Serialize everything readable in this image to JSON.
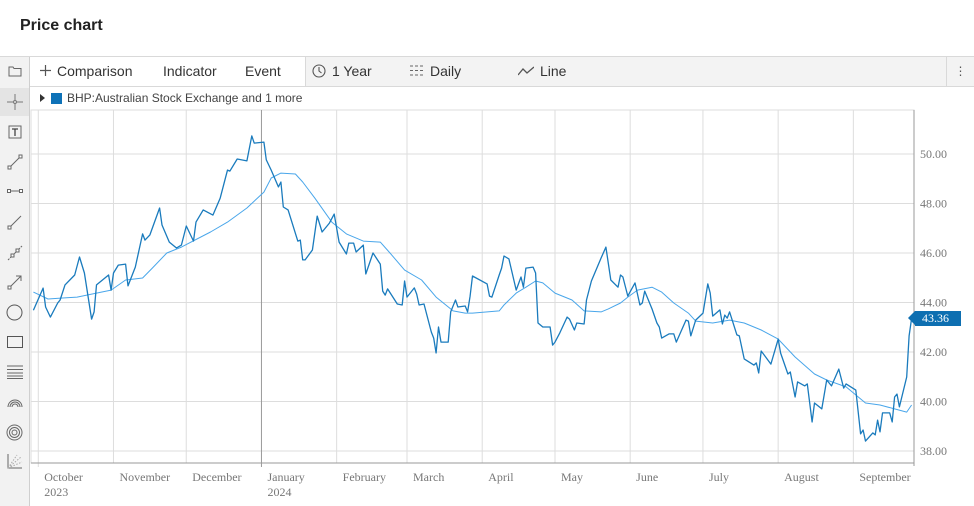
{
  "header": {
    "title": "Price chart"
  },
  "toolbar": {
    "comparison": "Comparison",
    "indicator": "Indicator",
    "event": "Event",
    "range": "1 Year",
    "interval": "Daily",
    "chart_type": "Line",
    "more": "⋮"
  },
  "sidebar": {
    "tools": [
      "folder-icon",
      "crosshair-icon",
      "text-box-icon",
      "trend-line-icon",
      "horizontal-segment-icon",
      "line-icon",
      "dashed-segment-icon",
      "arrow-icon",
      "circle-icon",
      "rectangle-icon",
      "parallel-lines-icon",
      "arcs-icon",
      "concentric-circles-icon",
      "fan-icon"
    ]
  },
  "legend": {
    "label": "BHP:Australian Stock Exchange and 1 more",
    "color": "#0e72b8"
  },
  "chart_data": {
    "type": "line",
    "title": "",
    "xlabel": "",
    "ylabel": "",
    "ylim": [
      37.6,
      52.2
    ],
    "xlim": [
      "2023-09-28",
      "2024-09-26"
    ],
    "y_ticks": [
      "38.00",
      "40.00",
      "42.00",
      "44.00",
      "46.00",
      "48.00",
      "50.00"
    ],
    "x_ticks": [
      {
        "label": "October",
        "sub": "2023",
        "date": "2023-10-01"
      },
      {
        "label": "November",
        "sub": "",
        "date": "2023-11-01"
      },
      {
        "label": "December",
        "sub": "",
        "date": "2023-12-01"
      },
      {
        "label": "January",
        "sub": "2024",
        "date": "2024-01-01"
      },
      {
        "label": "February",
        "sub": "",
        "date": "2024-02-01"
      },
      {
        "label": "March",
        "sub": "",
        "date": "2024-03-01"
      },
      {
        "label": "April",
        "sub": "",
        "date": "2024-04-01"
      },
      {
        "label": "May",
        "sub": "",
        "date": "2024-05-01"
      },
      {
        "label": "June",
        "sub": "",
        "date": "2024-06-01"
      },
      {
        "label": "July",
        "sub": "",
        "date": "2024-07-01"
      },
      {
        "label": "August",
        "sub": "",
        "date": "2024-08-01"
      },
      {
        "label": "September",
        "sub": "",
        "date": "2024-09-01"
      }
    ],
    "grid": true,
    "last_value": "43.36",
    "series": [
      {
        "color": "#1a7bbd",
        "points": [
          [
            "2023-09-29",
            43.69
          ],
          [
            "2023-10-03",
            44.58
          ],
          [
            "2023-10-04",
            43.82
          ],
          [
            "2023-10-06",
            43.41
          ],
          [
            "2023-10-09",
            43.98
          ],
          [
            "2023-10-10",
            44.1
          ],
          [
            "2023-10-12",
            44.71
          ],
          [
            "2023-10-16",
            45.11
          ],
          [
            "2023-10-18",
            45.84
          ],
          [
            "2023-10-20",
            45.19
          ],
          [
            "2023-10-23",
            43.33
          ],
          [
            "2023-10-24",
            43.62
          ],
          [
            "2023-10-25",
            44.71
          ],
          [
            "2023-10-30",
            45.11
          ],
          [
            "2023-10-31",
            44.5
          ],
          [
            "2023-11-01",
            45.19
          ],
          [
            "2023-11-03",
            45.51
          ],
          [
            "2023-11-06",
            45.55
          ],
          [
            "2023-11-07",
            44.67
          ],
          [
            "2023-11-10",
            45.43
          ],
          [
            "2023-11-13",
            46.77
          ],
          [
            "2023-11-14",
            46.52
          ],
          [
            "2023-11-16",
            46.73
          ],
          [
            "2023-11-20",
            47.82
          ],
          [
            "2023-11-21",
            47.13
          ],
          [
            "2023-11-24",
            46.44
          ],
          [
            "2023-11-27",
            46.2
          ],
          [
            "2023-11-29",
            46.32
          ],
          [
            "2023-12-01",
            47.09
          ],
          [
            "2023-12-04",
            46.48
          ],
          [
            "2023-12-05",
            47.25
          ],
          [
            "2023-12-08",
            47.74
          ],
          [
            "2023-12-12",
            47.53
          ],
          [
            "2023-12-15",
            48.22
          ],
          [
            "2023-12-18",
            49.35
          ],
          [
            "2023-12-19",
            49.31
          ],
          [
            "2023-12-22",
            49.8
          ],
          [
            "2023-12-26",
            49.72
          ],
          [
            "2023-12-28",
            50.73
          ],
          [
            "2023-12-29",
            50.44
          ],
          [
            "2024-01-02",
            50.48
          ],
          [
            "2024-01-03",
            49.76
          ],
          [
            "2024-01-05",
            49.35
          ],
          [
            "2024-01-08",
            48.67
          ],
          [
            "2024-01-09",
            48.87
          ],
          [
            "2024-01-10",
            47.86
          ],
          [
            "2024-01-12",
            47.74
          ],
          [
            "2024-01-16",
            46.48
          ],
          [
            "2024-01-17",
            46.52
          ],
          [
            "2024-01-18",
            45.72
          ],
          [
            "2024-01-19",
            45.72
          ],
          [
            "2024-01-22",
            46.12
          ],
          [
            "2024-01-24",
            47.49
          ],
          [
            "2024-01-26",
            46.85
          ],
          [
            "2024-01-29",
            47.21
          ],
          [
            "2024-01-31",
            47.57
          ],
          [
            "2024-02-02",
            46.44
          ],
          [
            "2024-02-05",
            45.96
          ],
          [
            "2024-02-06",
            46.4
          ],
          [
            "2024-02-08",
            46.4
          ],
          [
            "2024-02-09",
            46.04
          ],
          [
            "2024-02-12",
            46.32
          ],
          [
            "2024-02-13",
            45.15
          ],
          [
            "2024-02-16",
            46.0
          ],
          [
            "2024-02-19",
            45.55
          ],
          [
            "2024-02-20",
            44.46
          ],
          [
            "2024-02-21",
            44.3
          ],
          [
            "2024-02-22",
            44.55
          ],
          [
            "2024-02-26",
            43.94
          ],
          [
            "2024-02-28",
            43.9
          ],
          [
            "2024-02-29",
            44.87
          ],
          [
            "2024-03-01",
            44.22
          ],
          [
            "2024-03-04",
            44.59
          ],
          [
            "2024-03-05",
            44.34
          ],
          [
            "2024-03-06",
            43.9
          ],
          [
            "2024-03-08",
            43.94
          ],
          [
            "2024-03-11",
            42.81
          ],
          [
            "2024-03-12",
            42.56
          ],
          [
            "2024-03-13",
            41.96
          ],
          [
            "2024-03-14",
            43.01
          ],
          [
            "2024-03-15",
            42.4
          ],
          [
            "2024-03-18",
            42.4
          ],
          [
            "2024-03-19",
            43.62
          ],
          [
            "2024-03-21",
            44.1
          ],
          [
            "2024-03-22",
            43.82
          ],
          [
            "2024-03-25",
            43.86
          ],
          [
            "2024-03-26",
            43.62
          ],
          [
            "2024-03-27",
            44.26
          ],
          [
            "2024-03-28",
            45.07
          ],
          [
            "2024-04-03",
            44.75
          ],
          [
            "2024-04-04",
            44.26
          ],
          [
            "2024-04-05",
            44.22
          ],
          [
            "2024-04-08",
            45.11
          ],
          [
            "2024-04-09",
            45.39
          ],
          [
            "2024-04-10",
            45.88
          ],
          [
            "2024-04-12",
            45.76
          ],
          [
            "2024-04-15",
            44.5
          ],
          [
            "2024-04-17",
            45.03
          ],
          [
            "2024-04-18",
            44.62
          ],
          [
            "2024-04-19",
            45.39
          ],
          [
            "2024-04-22",
            45.43
          ],
          [
            "2024-04-23",
            45.19
          ],
          [
            "2024-04-24",
            43.17
          ],
          [
            "2024-04-26",
            43.01
          ],
          [
            "2024-04-29",
            43.01
          ],
          [
            "2024-04-30",
            42.28
          ],
          [
            "2024-05-01",
            42.4
          ],
          [
            "2024-05-03",
            42.77
          ],
          [
            "2024-05-06",
            43.41
          ],
          [
            "2024-05-07",
            43.33
          ],
          [
            "2024-05-09",
            42.89
          ],
          [
            "2024-05-10",
            43.17
          ],
          [
            "2024-05-13",
            43.13
          ],
          [
            "2024-05-14",
            44.1
          ],
          [
            "2024-05-16",
            44.87
          ],
          [
            "2024-05-20",
            45.8
          ],
          [
            "2024-05-22",
            46.24
          ],
          [
            "2024-05-24",
            44.91
          ],
          [
            "2024-05-27",
            44.62
          ],
          [
            "2024-05-28",
            45.11
          ],
          [
            "2024-05-29",
            45.03
          ],
          [
            "2024-05-31",
            44.26
          ],
          [
            "2024-06-03",
            44.79
          ],
          [
            "2024-06-05",
            43.9
          ],
          [
            "2024-06-06",
            43.98
          ],
          [
            "2024-06-07",
            44.46
          ],
          [
            "2024-06-10",
            43.74
          ],
          [
            "2024-06-12",
            43.17
          ],
          [
            "2024-06-13",
            43.01
          ],
          [
            "2024-06-14",
            42.56
          ],
          [
            "2024-06-17",
            42.73
          ],
          [
            "2024-06-19",
            42.73
          ],
          [
            "2024-06-20",
            42.4
          ],
          [
            "2024-06-24",
            43.29
          ],
          [
            "2024-06-25",
            43.25
          ],
          [
            "2024-06-26",
            42.65
          ],
          [
            "2024-06-28",
            43.29
          ],
          [
            "2024-07-01",
            43.57
          ],
          [
            "2024-07-03",
            44.75
          ],
          [
            "2024-07-04",
            44.38
          ],
          [
            "2024-07-05",
            43.45
          ],
          [
            "2024-07-08",
            43.7
          ],
          [
            "2024-07-09",
            43.13
          ],
          [
            "2024-07-10",
            43.49
          ],
          [
            "2024-07-11",
            43.37
          ],
          [
            "2024-07-12",
            43.62
          ],
          [
            "2024-07-15",
            42.69
          ],
          [
            "2024-07-16",
            42.65
          ],
          [
            "2024-07-18",
            41.72
          ],
          [
            "2024-07-22",
            41.47
          ],
          [
            "2024-07-23",
            41.56
          ],
          [
            "2024-07-24",
            41.15
          ],
          [
            "2024-07-25",
            42.04
          ],
          [
            "2024-07-29",
            41.51
          ],
          [
            "2024-08-01",
            42.52
          ],
          [
            "2024-08-02",
            41.96
          ],
          [
            "2024-08-05",
            41.11
          ],
          [
            "2024-08-06",
            41.19
          ],
          [
            "2024-08-08",
            40.18
          ],
          [
            "2024-08-09",
            40.79
          ],
          [
            "2024-08-12",
            40.63
          ],
          [
            "2024-08-13",
            40.71
          ],
          [
            "2024-08-15",
            39.17
          ],
          [
            "2024-08-16",
            39.94
          ],
          [
            "2024-08-19",
            39.7
          ],
          [
            "2024-08-21",
            40.87
          ],
          [
            "2024-08-23",
            40.63
          ],
          [
            "2024-08-26",
            41.31
          ],
          [
            "2024-08-28",
            40.54
          ],
          [
            "2024-08-29",
            40.71
          ],
          [
            "2024-09-02",
            40.46
          ],
          [
            "2024-09-04",
            38.69
          ],
          [
            "2024-09-05",
            38.85
          ],
          [
            "2024-09-06",
            38.4
          ],
          [
            "2024-09-09",
            38.73
          ],
          [
            "2024-09-10",
            38.65
          ],
          [
            "2024-09-11",
            39.25
          ],
          [
            "2024-09-12",
            38.77
          ],
          [
            "2024-09-13",
            39.54
          ],
          [
            "2024-09-16",
            39.54
          ],
          [
            "2024-09-17",
            39.17
          ],
          [
            "2024-09-18",
            40.18
          ],
          [
            "2024-09-19",
            40.3
          ],
          [
            "2024-09-20",
            39.78
          ],
          [
            "2024-09-23",
            40.99
          ],
          [
            "2024-09-24",
            42.65
          ],
          [
            "2024-09-25",
            43.36
          ]
        ]
      },
      {
        "color": "#49a6ea",
        "points": [
          [
            "2023-09-29",
            44.42
          ],
          [
            "2023-10-05",
            44.14
          ],
          [
            "2023-10-11",
            44.18
          ],
          [
            "2023-10-17",
            44.22
          ],
          [
            "2023-10-23",
            44.34
          ],
          [
            "2023-10-31",
            44.5
          ],
          [
            "2023-11-06",
            44.91
          ],
          [
            "2023-11-13",
            44.99
          ],
          [
            "2023-11-17",
            45.39
          ],
          [
            "2023-11-23",
            46.0
          ],
          [
            "2023-11-29",
            46.24
          ],
          [
            "2023-12-11",
            46.85
          ],
          [
            "2023-12-18",
            47.25
          ],
          [
            "2023-12-26",
            47.82
          ],
          [
            "2024-01-02",
            48.46
          ],
          [
            "2024-01-05",
            49.03
          ],
          [
            "2024-01-09",
            49.23
          ],
          [
            "2024-01-15",
            49.19
          ],
          [
            "2024-01-18",
            48.87
          ],
          [
            "2024-01-23",
            48.22
          ],
          [
            "2024-01-30",
            47.25
          ],
          [
            "2024-02-05",
            46.77
          ],
          [
            "2024-02-12",
            46.48
          ],
          [
            "2024-02-19",
            46.44
          ],
          [
            "2024-02-23",
            46.0
          ],
          [
            "2024-02-29",
            45.31
          ],
          [
            "2024-03-07",
            44.91
          ],
          [
            "2024-03-13",
            44.22
          ],
          [
            "2024-03-20",
            43.66
          ],
          [
            "2024-03-25",
            43.57
          ],
          [
            "2024-03-28",
            43.57
          ],
          [
            "2024-04-08",
            43.66
          ],
          [
            "2024-04-10",
            43.9
          ],
          [
            "2024-04-15",
            44.38
          ],
          [
            "2024-04-19",
            44.62
          ],
          [
            "2024-04-23",
            44.87
          ],
          [
            "2024-04-26",
            44.79
          ],
          [
            "2024-05-01",
            44.38
          ],
          [
            "2024-05-08",
            44.1
          ],
          [
            "2024-05-13",
            43.66
          ],
          [
            "2024-05-20",
            43.62
          ],
          [
            "2024-05-23",
            43.74
          ],
          [
            "2024-05-28",
            43.98
          ],
          [
            "2024-05-31",
            44.22
          ],
          [
            "2024-06-04",
            44.5
          ],
          [
            "2024-06-10",
            44.62
          ],
          [
            "2024-06-14",
            44.42
          ],
          [
            "2024-06-19",
            43.98
          ],
          [
            "2024-06-25",
            43.57
          ],
          [
            "2024-06-28",
            43.25
          ],
          [
            "2024-07-05",
            43.17
          ],
          [
            "2024-07-12",
            43.29
          ],
          [
            "2024-07-18",
            43.17
          ],
          [
            "2024-07-25",
            42.89
          ],
          [
            "2024-08-01",
            42.52
          ],
          [
            "2024-08-08",
            41.8
          ],
          [
            "2024-08-16",
            41.11
          ],
          [
            "2024-08-21",
            40.87
          ],
          [
            "2024-08-29",
            40.59
          ],
          [
            "2024-09-06",
            39.94
          ],
          [
            "2024-09-12",
            39.86
          ],
          [
            "2024-09-18",
            39.7
          ],
          [
            "2024-09-23",
            39.57
          ],
          [
            "2024-09-25",
            39.86
          ]
        ]
      }
    ]
  }
}
